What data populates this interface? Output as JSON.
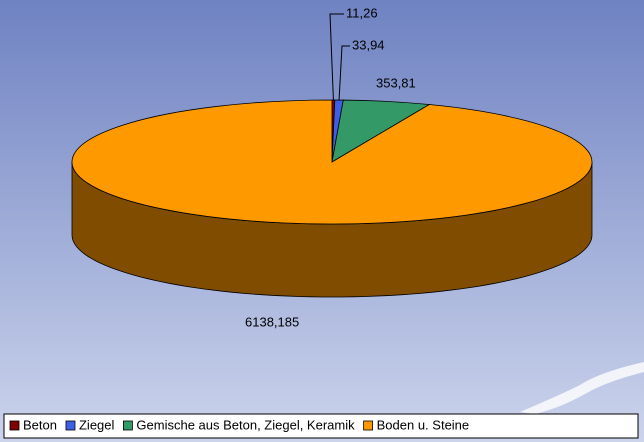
{
  "chart_data": {
    "type": "pie",
    "categories": [
      "Beton",
      "Ziegel",
      "Gemische aus Beton, Ziegel, Keramik",
      "Boden u. Steine"
    ],
    "values": [
      11.26,
      33.94,
      353.81,
      6138.185
    ],
    "value_labels": [
      "11,26",
      "33,94",
      "353,81",
      "6138,185"
    ],
    "colors": [
      "#800000",
      "#3d5fe6",
      "#339966",
      "#ff9900"
    ],
    "legend": "bottom"
  }
}
